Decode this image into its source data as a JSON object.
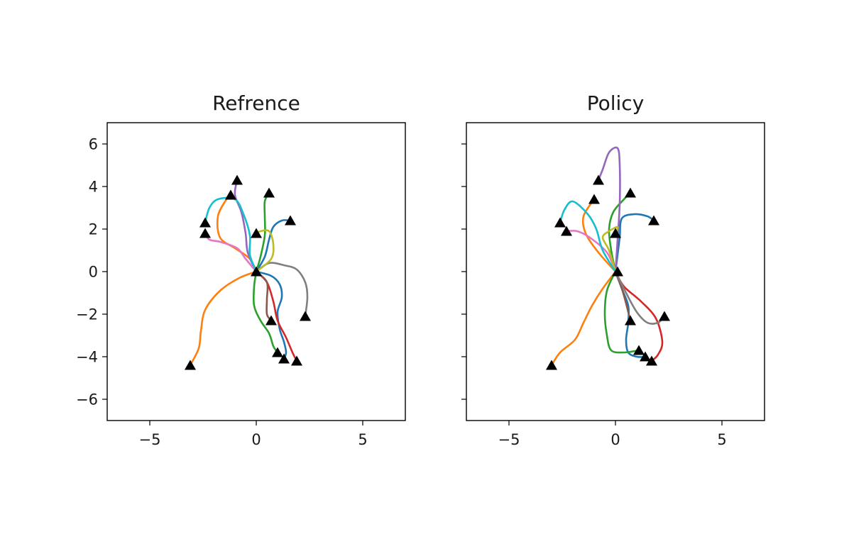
{
  "chart_data": [
    {
      "type": "line",
      "title": "Refrence",
      "xlabel": "",
      "ylabel": "",
      "xlim": [
        -7,
        7
      ],
      "ylim": [
        -7,
        7
      ],
      "xticks": [
        -5,
        0,
        5
      ],
      "yticks": [
        -6,
        -4,
        -2,
        0,
        2,
        4,
        6
      ],
      "xtick_labels": [
        "−5",
        "0",
        "5"
      ],
      "ytick_labels": [
        "−6",
        "−4",
        "−2",
        "0",
        "2",
        "4",
        "6"
      ],
      "show_ytick_labels": true,
      "grid": false,
      "markers": {
        "shape": "triangle",
        "color": "#000000",
        "points": [
          [
            0,
            0
          ],
          [
            1.6,
            2.4
          ],
          [
            0.6,
            3.7
          ],
          [
            -0.9,
            4.3
          ],
          [
            -1.2,
            3.6
          ],
          [
            -2.4,
            2.3
          ],
          [
            -2.4,
            1.8
          ],
          [
            0,
            1.8
          ],
          [
            2.3,
            -2.1
          ],
          [
            0.7,
            -2.3
          ],
          [
            -3.1,
            -4.4
          ],
          [
            1.0,
            -3.8
          ],
          [
            1.3,
            -4.1
          ],
          [
            1.9,
            -4.2
          ]
        ]
      },
      "series": [
        {
          "color": "#1f77b4",
          "points": [
            [
              0,
              0
            ],
            [
              0.4,
              0.7
            ],
            [
              0.6,
              1.5
            ],
            [
              0.8,
              2.1
            ],
            [
              1.2,
              2.4
            ],
            [
              1.6,
              2.4
            ]
          ]
        },
        {
          "color": "#1f77b4",
          "points": [
            [
              0,
              0
            ],
            [
              0.7,
              -0.2
            ],
            [
              1.1,
              -0.6
            ],
            [
              1.2,
              -1.2
            ],
            [
              1.0,
              -1.9
            ],
            [
              1.1,
              -2.7
            ],
            [
              1.3,
              -3.3
            ],
            [
              1.4,
              -3.8
            ],
            [
              1.3,
              -4.1
            ]
          ]
        },
        {
          "color": "#ff7f0e",
          "points": [
            [
              0,
              0
            ],
            [
              -0.8,
              -0.3
            ],
            [
              -1.7,
              -0.9
            ],
            [
              -2.4,
              -1.8
            ],
            [
              -2.6,
              -2.8
            ],
            [
              -2.7,
              -3.6
            ],
            [
              -3.1,
              -4.4
            ]
          ]
        },
        {
          "color": "#ff7f0e",
          "points": [
            [
              0,
              0
            ],
            [
              -0.3,
              0.6
            ],
            [
              -1.0,
              1.1
            ],
            [
              -1.7,
              1.6
            ],
            [
              -1.8,
              2.6
            ],
            [
              -1.4,
              3.4
            ],
            [
              -1.2,
              3.6
            ]
          ]
        },
        {
          "color": "#2ca02c",
          "points": [
            [
              0,
              0
            ],
            [
              0.2,
              0.7
            ],
            [
              0.4,
              1.7
            ],
            [
              0.4,
              2.6
            ],
            [
              0.4,
              3.3
            ],
            [
              0.6,
              3.7
            ]
          ]
        },
        {
          "color": "#2ca02c",
          "points": [
            [
              0,
              0
            ],
            [
              -0.1,
              -0.7
            ],
            [
              -0.1,
              -1.6
            ],
            [
              0.2,
              -2.3
            ],
            [
              0.6,
              -2.9
            ],
            [
              0.8,
              -3.5
            ],
            [
              1.0,
              -3.8
            ]
          ]
        },
        {
          "color": "#d62728",
          "points": [
            [
              0,
              0
            ],
            [
              0.5,
              -0.5
            ],
            [
              0.8,
              -1.4
            ],
            [
              1.0,
              -2.3
            ],
            [
              1.4,
              -3.1
            ],
            [
              1.7,
              -3.8
            ],
            [
              1.9,
              -4.2
            ]
          ]
        },
        {
          "color": "#9467bd",
          "points": [
            [
              0,
              0
            ],
            [
              -0.4,
              0.9
            ],
            [
              -0.5,
              1.8
            ],
            [
              -0.7,
              2.8
            ],
            [
              -1.0,
              3.6
            ],
            [
              -0.9,
              4.3
            ]
          ]
        },
        {
          "color": "#8c564b",
          "points": [
            [
              0,
              0
            ],
            [
              0.5,
              -0.5
            ],
            [
              0.5,
              -1.3
            ],
            [
              0.5,
              -2.0
            ],
            [
              0.7,
              -2.3
            ]
          ]
        },
        {
          "color": "#e377c2",
          "points": [
            [
              0,
              0
            ],
            [
              -0.5,
              0.6
            ],
            [
              -0.9,
              1.1
            ],
            [
              -1.7,
              1.4
            ],
            [
              -2.2,
              1.5
            ],
            [
              -2.4,
              1.8
            ]
          ]
        },
        {
          "color": "#7f7f7f",
          "points": [
            [
              0,
              0
            ],
            [
              0.6,
              0.4
            ],
            [
              1.3,
              0.3
            ],
            [
              1.9,
              0.1
            ],
            [
              2.3,
              -0.5
            ],
            [
              2.4,
              -1.2
            ],
            [
              2.3,
              -2.1
            ]
          ]
        },
        {
          "color": "#bcbd22",
          "points": [
            [
              0,
              0
            ],
            [
              0.7,
              0.6
            ],
            [
              0.8,
              1.3
            ],
            [
              0.6,
              1.9
            ],
            [
              0.2,
              1.9
            ],
            [
              0,
              1.8
            ]
          ]
        },
        {
          "color": "#17becf",
          "points": [
            [
              0,
              0
            ],
            [
              -0.3,
              0.8
            ],
            [
              -0.3,
              1.7
            ],
            [
              -0.6,
              2.7
            ],
            [
              -1.0,
              3.4
            ],
            [
              -1.8,
              3.4
            ],
            [
              -2.2,
              3.0
            ],
            [
              -2.4,
              2.3
            ]
          ]
        }
      ]
    },
    {
      "type": "line",
      "title": "Policy",
      "xlabel": "",
      "ylabel": "",
      "xlim": [
        -7,
        7
      ],
      "ylim": [
        -7,
        7
      ],
      "xticks": [
        -5,
        0,
        5
      ],
      "yticks": [
        -6,
        -4,
        -2,
        0,
        2,
        4,
        6
      ],
      "xtick_labels": [
        "−5",
        "0",
        "5"
      ],
      "ytick_labels": [],
      "show_ytick_labels": false,
      "grid": false,
      "markers": {
        "shape": "triangle",
        "color": "#000000",
        "points": [
          [
            0.1,
            0
          ],
          [
            1.8,
            2.4
          ],
          [
            0.7,
            3.7
          ],
          [
            -0.8,
            4.3
          ],
          [
            -1.0,
            3.4
          ],
          [
            -2.6,
            2.3
          ],
          [
            -2.3,
            1.9
          ],
          [
            0,
            1.8
          ],
          [
            2.3,
            -2.1
          ],
          [
            0.7,
            -2.3
          ],
          [
            -3.0,
            -4.4
          ],
          [
            1.1,
            -3.7
          ],
          [
            1.4,
            -4.0
          ],
          [
            1.7,
            -4.2
          ]
        ]
      },
      "series": [
        {
          "color": "#1f77b4",
          "points": [
            [
              0,
              0
            ],
            [
              0.1,
              0.8
            ],
            [
              0.2,
              1.6
            ],
            [
              0.3,
              2.5
            ],
            [
              0.9,
              2.7
            ],
            [
              1.5,
              2.6
            ],
            [
              1.8,
              2.4
            ]
          ]
        },
        {
          "color": "#1f77b4",
          "points": [
            [
              0,
              0
            ],
            [
              0.3,
              -0.8
            ],
            [
              0.6,
              -1.6
            ],
            [
              0.6,
              -2.4
            ],
            [
              0.5,
              -3.2
            ],
            [
              0.6,
              -3.8
            ],
            [
              1.0,
              -4.0
            ],
            [
              1.4,
              -4.0
            ]
          ]
        },
        {
          "color": "#ff7f0e",
          "points": [
            [
              0,
              0
            ],
            [
              -0.6,
              -0.8
            ],
            [
              -1.1,
              -1.6
            ],
            [
              -1.5,
              -2.4
            ],
            [
              -1.9,
              -3.2
            ],
            [
              -2.6,
              -3.8
            ],
            [
              -3.0,
              -4.4
            ]
          ]
        },
        {
          "color": "#ff7f0e",
          "points": [
            [
              0,
              0
            ],
            [
              -0.8,
              0.9
            ],
            [
              -1.4,
              1.8
            ],
            [
              -1.5,
              2.6
            ],
            [
              -1.0,
              3.4
            ]
          ]
        },
        {
          "color": "#2ca02c",
          "points": [
            [
              0,
              0
            ],
            [
              -0.2,
              1.0
            ],
            [
              -0.3,
              2.0
            ],
            [
              -0.1,
              2.8
            ],
            [
              0.4,
              3.4
            ],
            [
              0.7,
              3.7
            ]
          ]
        },
        {
          "color": "#2ca02c",
          "points": [
            [
              0,
              0
            ],
            [
              -0.4,
              -0.9
            ],
            [
              -0.5,
              -2.0
            ],
            [
              -0.4,
              -3.0
            ],
            [
              -0.2,
              -3.7
            ],
            [
              0.4,
              -3.8
            ],
            [
              1.1,
              -3.7
            ]
          ]
        },
        {
          "color": "#d62728",
          "points": [
            [
              0,
              0
            ],
            [
              0.4,
              -0.7
            ],
            [
              1.2,
              -1.4
            ],
            [
              1.9,
              -2.2
            ],
            [
              2.2,
              -3.3
            ],
            [
              2.0,
              -3.9
            ],
            [
              1.7,
              -4.2
            ]
          ]
        },
        {
          "color": "#9467bd",
          "points": [
            [
              0,
              0
            ],
            [
              0.1,
              1.5
            ],
            [
              0.2,
              3.2
            ],
            [
              0.2,
              5.0
            ],
            [
              0.1,
              5.8
            ],
            [
              -0.3,
              5.6
            ],
            [
              -0.6,
              4.8
            ],
            [
              -0.8,
              4.3
            ]
          ]
        },
        {
          "color": "#8c564b",
          "points": [
            [
              0,
              0
            ],
            [
              0.3,
              -0.8
            ],
            [
              0.5,
              -1.5
            ],
            [
              0.7,
              -2.3
            ]
          ]
        },
        {
          "color": "#e377c2",
          "points": [
            [
              0,
              0
            ],
            [
              -0.4,
              0.9
            ],
            [
              -1.2,
              1.6
            ],
            [
              -1.8,
              1.9
            ],
            [
              -2.3,
              1.9
            ]
          ]
        },
        {
          "color": "#7f7f7f",
          "points": [
            [
              0,
              0
            ],
            [
              0.5,
              -1.0
            ],
            [
              1.0,
              -1.9
            ],
            [
              1.5,
              -2.4
            ],
            [
              2.0,
              -2.4
            ],
            [
              2.3,
              -2.1
            ]
          ]
        },
        {
          "color": "#bcbd22",
          "points": [
            [
              0,
              0
            ],
            [
              -0.3,
              1.0
            ],
            [
              -0.6,
              1.6
            ],
            [
              -0.3,
              1.9
            ],
            [
              0.1,
              2.1
            ],
            [
              0,
              1.8
            ]
          ]
        },
        {
          "color": "#17becf",
          "points": [
            [
              0,
              0
            ],
            [
              -0.6,
              1.0
            ],
            [
              -0.9,
              2.0
            ],
            [
              -1.3,
              2.7
            ],
            [
              -2.0,
              3.3
            ],
            [
              -2.4,
              2.9
            ],
            [
              -2.6,
              2.3
            ]
          ]
        }
      ]
    }
  ]
}
